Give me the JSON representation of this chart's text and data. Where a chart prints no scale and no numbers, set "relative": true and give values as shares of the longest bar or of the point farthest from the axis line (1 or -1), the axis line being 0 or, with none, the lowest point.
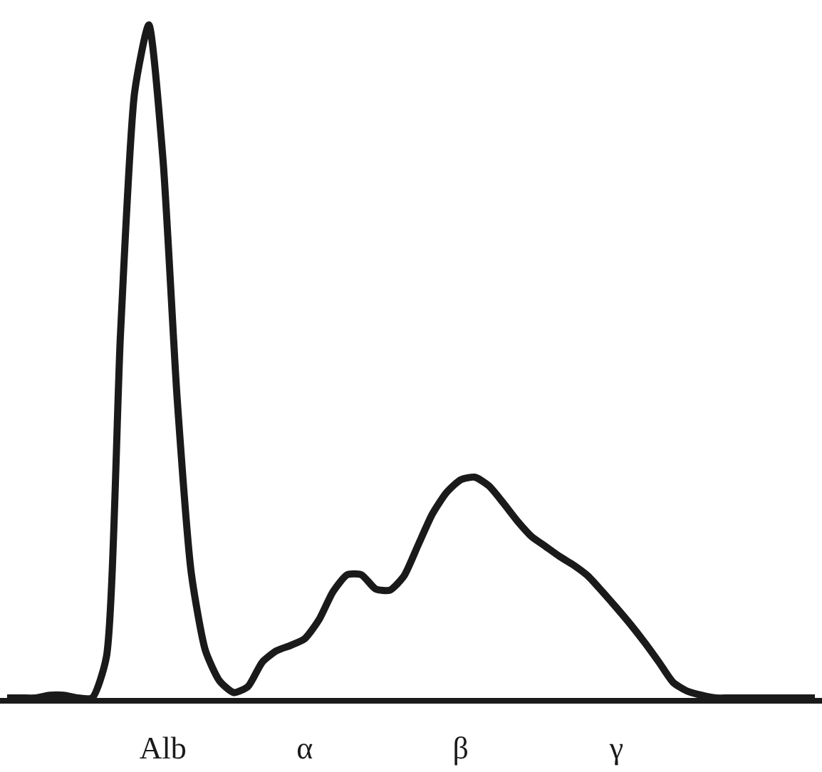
{
  "chart_data": {
    "type": "line",
    "relative": true,
    "marker": "none",
    "line_style": "solid",
    "categories": [
      null,
      null,
      null,
      null,
      null,
      null,
      null,
      null,
      null,
      null,
      null,
      "Alb",
      null,
      null,
      null,
      null,
      null,
      null,
      null,
      null,
      null,
      "α",
      null,
      null,
      null,
      null,
      null,
      null,
      null,
      null,
      null,
      null,
      "β",
      null,
      null,
      null,
      null,
      null,
      null,
      null,
      null,
      null,
      null,
      "γ",
      null,
      null,
      null,
      null,
      null,
      null,
      null,
      null,
      null,
      null,
      null,
      null,
      null,
      null
    ],
    "series": [
      {
        "color": "#1a1a1a",
        "values": [
          0,
          0,
          0,
          0.004,
          0.004,
          0,
          0,
          0.06,
          0.54,
          0.9,
          1,
          0.8,
          0.445,
          0.185,
          0.07,
          0.025,
          0.008,
          0.017,
          0.053,
          0.07,
          0.078,
          0.088,
          0.116,
          0.158,
          0.183,
          0.183,
          0.162,
          0.16,
          0.181,
          0.227,
          0.273,
          0.305,
          0.324,
          0.328,
          0.315,
          0.29,
          0.263,
          0.24,
          0.225,
          0.21,
          0.197,
          0.181,
          0.158,
          0.134,
          0.109,
          0.082,
          0.053,
          0.023,
          0.01,
          0.004,
          0,
          0,
          0,
          0,
          0,
          0,
          0,
          0
        ]
      }
    ]
  }
}
